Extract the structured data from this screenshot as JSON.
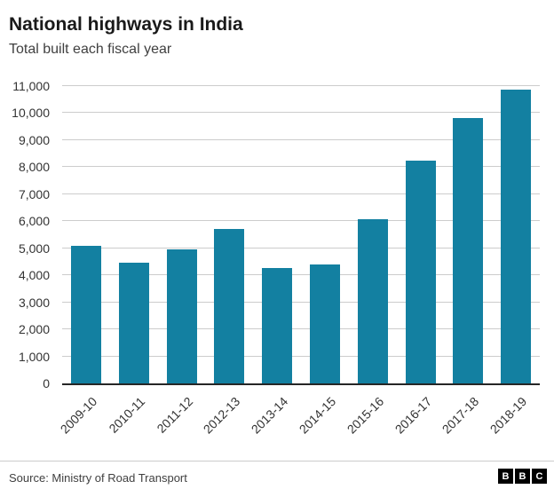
{
  "header": {
    "title": "National highways in India",
    "subtitle": "Total built each fiscal year"
  },
  "chart_data": {
    "type": "bar",
    "title": "National highways in India",
    "subtitle": "Total built each fiscal year",
    "categories": [
      "2009-10",
      "2010-11",
      "2011-12",
      "2012-13",
      "2013-14",
      "2014-15",
      "2015-16",
      "2016-17",
      "2017-18",
      "2018-19"
    ],
    "values": [
      5100,
      4450,
      4970,
      5720,
      4260,
      4410,
      6060,
      8230,
      9830,
      10855
    ],
    "xlabel": "",
    "ylabel": "",
    "ylim": [
      0,
      11000
    ],
    "ytick_step": 1000,
    "ytick_labels": [
      "0",
      "1,000",
      "2,000",
      "3,000",
      "4,000",
      "5,000",
      "6,000",
      "7,000",
      "8,000",
      "9,000",
      "10,000",
      "11,000"
    ],
    "grid": "horizontal",
    "legend": "none",
    "bar_color": "#1380A1"
  },
  "footer": {
    "source": "Source: Ministry of Road Transport",
    "logo_letters": [
      "B",
      "B",
      "C"
    ]
  }
}
